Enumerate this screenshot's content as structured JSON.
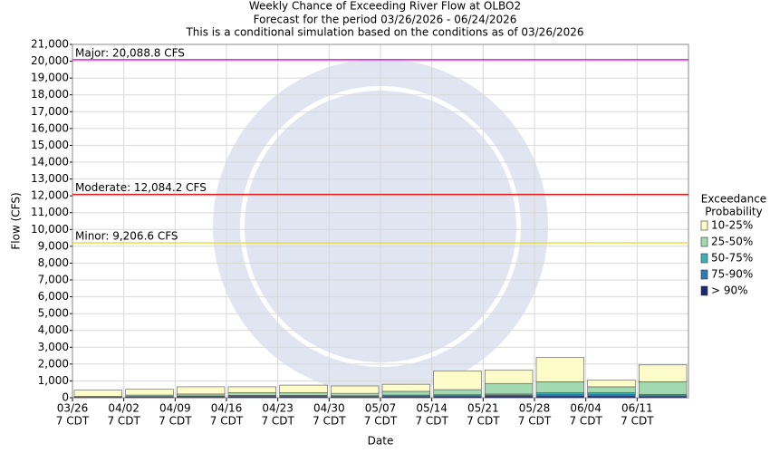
{
  "chart_data": {
    "type": "bar",
    "title": [
      "Weekly Chance of Exceeding River Flow at OLBO2",
      "Forecast for the period 03/26/2026 - 06/24/2026",
      "This is a conditional simulation based on the conditions as of 03/26/2026"
    ],
    "x_label": "Date",
    "y_label": "Flow (CFS)",
    "categories": [
      [
        "03/26",
        "7 CDT"
      ],
      [
        "04/02",
        "7 CDT"
      ],
      [
        "04/09",
        "7 CDT"
      ],
      [
        "04/16",
        "7 CDT"
      ],
      [
        "04/23",
        "7 CDT"
      ],
      [
        "04/30",
        "7 CDT"
      ],
      [
        "05/07",
        "7 CDT"
      ],
      [
        "05/14",
        "7 CDT"
      ],
      [
        "05/21",
        "7 CDT"
      ],
      [
        "05/28",
        "7 CDT"
      ],
      [
        "06/04",
        "7 CDT"
      ],
      [
        "06/11",
        "7 CDT"
      ]
    ],
    "series": [
      {
        "name": "> 90%",
        "color": "#1f2a6e",
        "values": [
          30,
          40,
          50,
          60,
          60,
          50,
          60,
          80,
          100,
          100,
          100,
          80
        ]
      },
      {
        "name": "75-90%",
        "color": "#2e7bb5",
        "values": [
          10,
          20,
          30,
          40,
          40,
          30,
          40,
          40,
          40,
          80,
          80,
          40
        ]
      },
      {
        "name": "50-75%",
        "color": "#3fb0b8",
        "values": [
          10,
          20,
          30,
          40,
          40,
          40,
          60,
          60,
          80,
          120,
          120,
          80
        ]
      },
      {
        "name": "25-50%",
        "color": "#a3d9b1",
        "values": [
          30,
          80,
          110,
          160,
          160,
          140,
          220,
          300,
          630,
          650,
          350,
          750
        ]
      },
      {
        "name": "10-25%",
        "color": "#fdfcc8",
        "values": [
          370,
          340,
          430,
          350,
          450,
          440,
          420,
          1120,
          800,
          1450,
          400,
          1000
        ]
      }
    ],
    "legend_title": [
      "Exceedance",
      "Probability"
    ],
    "stacked": true,
    "grid": true,
    "ylim": [
      0,
      21000
    ],
    "yticks": [
      0,
      {
        "value": 1000,
        "label": "1,000"
      },
      {
        "value": 2000,
        "label": "2,000"
      },
      {
        "value": 3000,
        "label": "3,000"
      },
      {
        "value": 4000,
        "label": "4,000"
      },
      {
        "value": 5000,
        "label": "5,000"
      },
      {
        "value": 6000,
        "label": "6,000"
      },
      {
        "value": 7000,
        "label": "7,000"
      },
      {
        "value": 8000,
        "label": "8,000"
      },
      {
        "value": 9000,
        "label": "9,000"
      },
      {
        "value": 10000,
        "label": "10,000"
      },
      {
        "value": 11000,
        "label": "11,000"
      },
      {
        "value": 12000,
        "label": "12,000"
      },
      {
        "value": 13000,
        "label": "13,000"
      },
      {
        "value": 14000,
        "label": "14,000"
      },
      {
        "value": 15000,
        "label": "15,000"
      },
      {
        "value": 16000,
        "label": "16,000"
      },
      {
        "value": 17000,
        "label": "17,000"
      },
      {
        "value": 18000,
        "label": "18,000"
      },
      {
        "value": 19000,
        "label": "19,000"
      },
      {
        "value": 20000,
        "label": "20,000"
      },
      {
        "value": 21000,
        "label": "21,000"
      }
    ],
    "thresholds": [
      {
        "label": "Major: 20,088.8 CFS",
        "value": 20088.8,
        "color": "#d020d0"
      },
      {
        "label": "Moderate: 12,084.2 CFS",
        "value": 12084.2,
        "color": "#d02020"
      },
      {
        "label": "Minor: 9,206.6 CFS",
        "value": 9206.6,
        "color": "#e8e040"
      }
    ]
  }
}
